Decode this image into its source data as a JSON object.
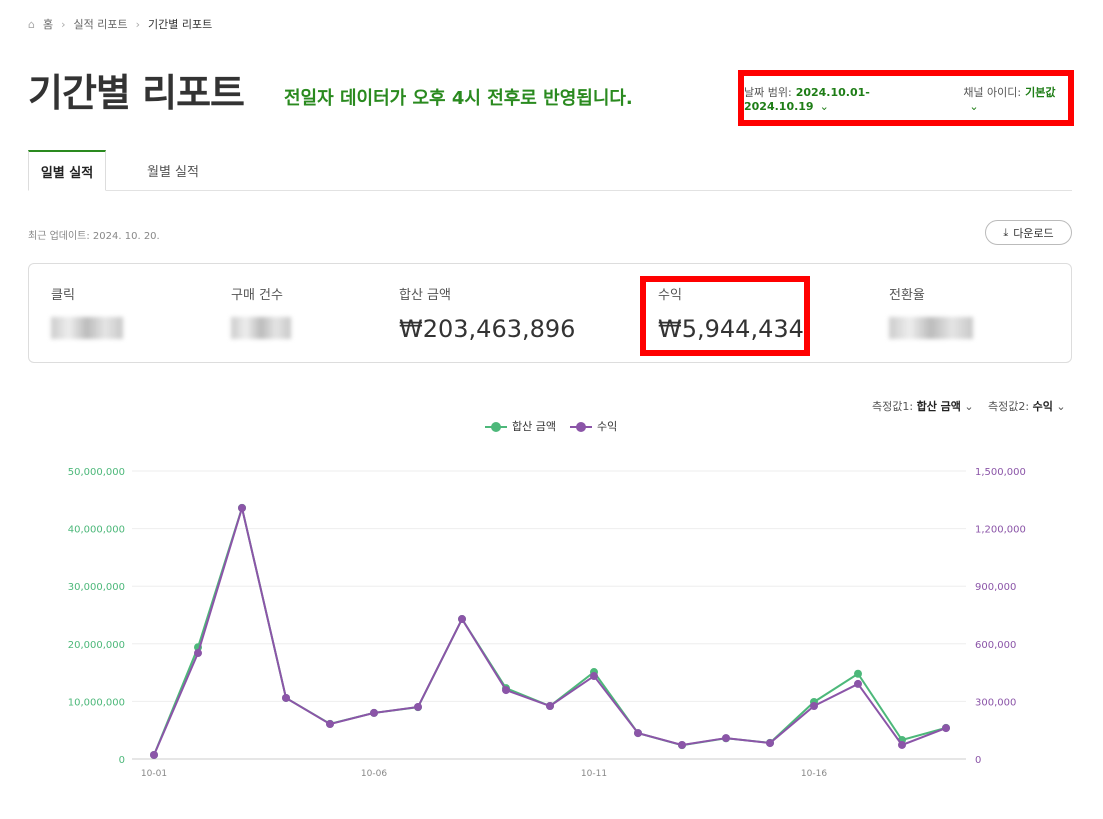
{
  "breadcrumb": {
    "home": "홈",
    "items": [
      "실적 리포트",
      "기간별 리포트"
    ]
  },
  "title": "기간별 리포트",
  "notice": "전일자 데이터가 오후 4시 전후로 반영됩니다.",
  "filters": {
    "date_label": "날짜 범위:",
    "date_value": "2024.10.01-2024.10.19",
    "channel_label": "채널 아이디:",
    "channel_value": "기본값"
  },
  "tabs": [
    {
      "label": "일별 실적",
      "active": true
    },
    {
      "label": "월별 실적",
      "active": false
    }
  ],
  "last_update": "최근 업데이트: 2024. 10. 20.",
  "download_label": "다운로드",
  "metrics": [
    {
      "label": "클릭",
      "value": null,
      "blurred": true
    },
    {
      "label": "구매 건수",
      "value": null,
      "blurred": true
    },
    {
      "label": "합산 금액",
      "value": "₩203,463,896"
    },
    {
      "label": "수익",
      "value": "₩5,944,434",
      "highlighted": true
    },
    {
      "label": "전환율",
      "value": null,
      "blurred": true
    }
  ],
  "measure1": {
    "label": "측정값1:",
    "value": "합산 금액"
  },
  "measure2": {
    "label": "측정값2:",
    "value": "수익"
  },
  "chart_data": {
    "type": "line",
    "x": [
      "10-01",
      "10-02",
      "10-03",
      "10-04",
      "10-05",
      "10-06",
      "10-07",
      "10-08",
      "10-09",
      "10-10",
      "10-11",
      "10-12",
      "10-13",
      "10-14",
      "10-15",
      "10-16",
      "10-17",
      "10-18",
      "10-19"
    ],
    "x_tick_labels": [
      "10-01",
      "10-06",
      "10-11",
      "10-16"
    ],
    "series": [
      {
        "name": "합산 금액",
        "axis": "left",
        "color": "#4db87a",
        "values": [
          700000,
          19400000,
          43600000,
          10600000,
          6100000,
          8000000,
          9000000,
          24300000,
          12300000,
          9200000,
          15100000,
          4500000,
          2400000,
          3600000,
          2800000,
          9900000,
          14800000,
          3300000,
          5400000
        ]
      },
      {
        "name": "수익",
        "axis": "right",
        "color": "#8b55a8",
        "values": [
          21000,
          552000,
          1307000,
          318000,
          182000,
          240000,
          271000,
          729000,
          359000,
          276000,
          432000,
          135000,
          73000,
          109000,
          83000,
          276000,
          391000,
          73000,
          161000
        ]
      }
    ],
    "y_left": {
      "range": [
        0,
        50000000
      ],
      "ticks": [
        "0",
        "10,000,000",
        "20,000,000",
        "30,000,000",
        "40,000,000",
        "50,000,000"
      ]
    },
    "y_right": {
      "range": [
        0,
        1500000
      ],
      "ticks": [
        "0",
        "300,000",
        "600,000",
        "900,000",
        "1,200,000",
        "1,500,000"
      ]
    },
    "grid": true,
    "legend": "top-center"
  },
  "colors": {
    "accent": "#2a8a1f",
    "highlight": "#ff0000"
  }
}
